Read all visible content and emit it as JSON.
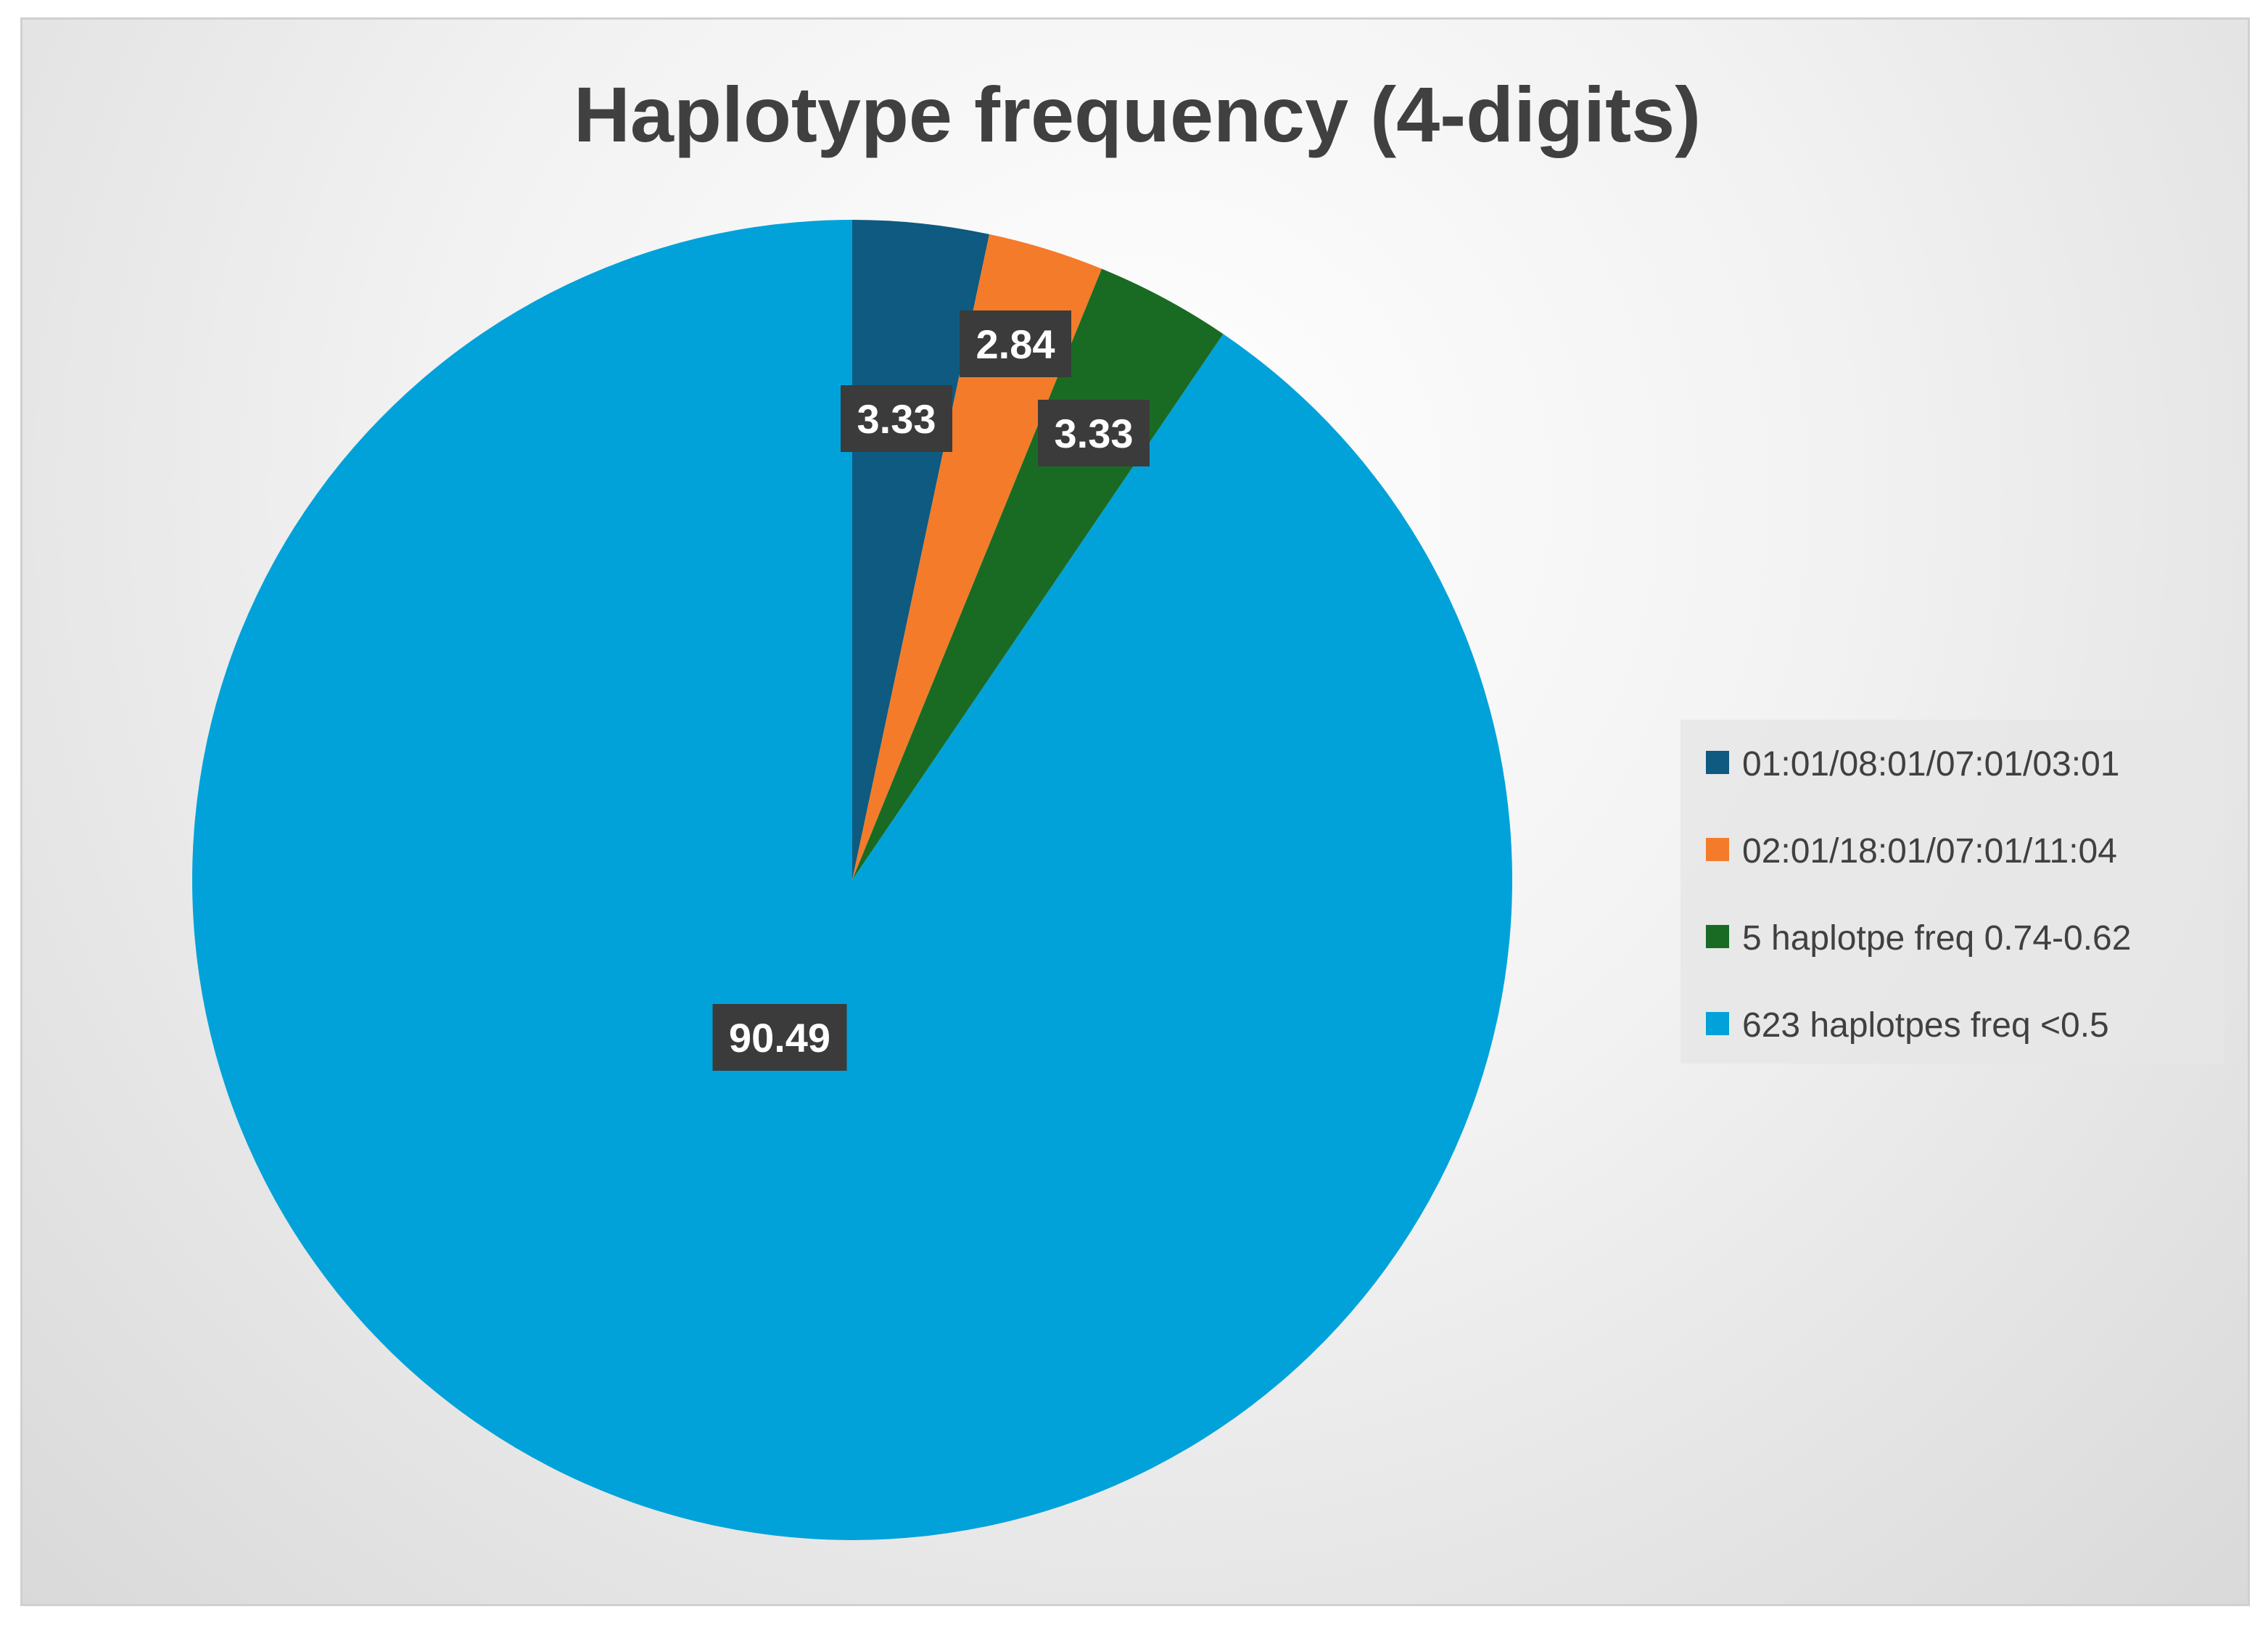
{
  "chart_data": {
    "type": "pie",
    "title": "Haplotype frequency (4-digits)",
    "legend_position": "right",
    "slices": [
      {
        "label": "01:01/08:01/07:01/03:01",
        "value": 3.33,
        "value_label": "3.33",
        "color": "#0e5a80"
      },
      {
        "label": "02:01/18:01/07:01/11:04",
        "value": 2.84,
        "value_label": "2.84",
        "color": "#f47b2a"
      },
      {
        "label": "5 haplotpe freq 0.74-0.62",
        "value": 3.33,
        "value_label": "3.33",
        "color": "#196b24"
      },
      {
        "label": "623 haplotpes freq <0.5",
        "value": 90.49,
        "value_label": "90.49",
        "color": "#00a2d9"
      }
    ],
    "start_angle_deg": 0,
    "direction": "clockwise",
    "data_label_style": {
      "background": "#3b3b3b",
      "text_color": "#ffffff"
    }
  }
}
